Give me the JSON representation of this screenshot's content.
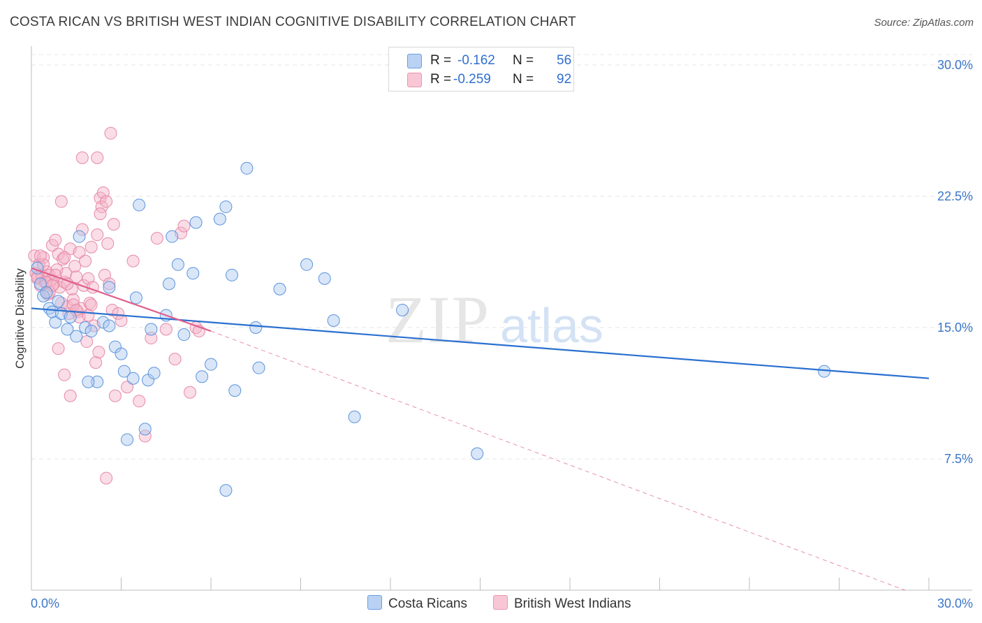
{
  "title": "COSTA RICAN VS BRITISH WEST INDIAN COGNITIVE DISABILITY CORRELATION CHART",
  "source": "Source: ZipAtlas.com",
  "watermark": {
    "zip": "ZIP",
    "atlas": "atlas"
  },
  "colors": {
    "blue_fill": "#a9c8f0",
    "blue_stroke": "#5b93dc",
    "blue_line": "#2a70d0",
    "pink_fill": "#f5b4c8",
    "pink_stroke": "#e689a8",
    "pink_line": "#e0608e",
    "axis_label": "#3a76c8"
  },
  "legend": {
    "rows": [
      {
        "r_label": "R =",
        "r_value": "-0.162",
        "n_label": "N =",
        "n_value": "56"
      },
      {
        "r_label": "R =",
        "r_value": "-0.259",
        "n_label": "N =",
        "n_value": "92"
      }
    ]
  },
  "chart_data": {
    "type": "scatter",
    "title": "COSTA RICAN VS BRITISH WEST INDIAN COGNITIVE DISABILITY CORRELATION CHART",
    "xlabel": "",
    "ylabel": "Cognitive Disability",
    "xlim": [
      0,
      30
    ],
    "ylim": [
      0,
      30.6
    ],
    "x_tick_labels": [
      "0.0%",
      "30.0%"
    ],
    "y_ticks": [
      7.5,
      15.0,
      22.5,
      30.0
    ],
    "y_tick_labels": [
      "7.5%",
      "15.0%",
      "22.5%",
      "30.0%"
    ],
    "grid": true,
    "series": [
      {
        "name": "Costa Ricans",
        "r": -0.162,
        "n": 56,
        "trend": {
          "x": [
            0,
            30
          ],
          "y": [
            16.1,
            12.1
          ]
        },
        "points": [
          [
            0.3,
            17.5
          ],
          [
            0.4,
            16.8
          ],
          [
            0.5,
            17.0
          ],
          [
            0.6,
            16.1
          ],
          [
            0.7,
            15.9
          ],
          [
            0.8,
            15.3
          ],
          [
            0.9,
            16.5
          ],
          [
            1.0,
            15.8
          ],
          [
            1.2,
            14.9
          ],
          [
            1.3,
            15.6
          ],
          [
            1.5,
            14.5
          ],
          [
            1.6,
            20.2
          ],
          [
            1.8,
            15.0
          ],
          [
            2.0,
            14.8
          ],
          [
            2.2,
            11.9
          ],
          [
            2.4,
            15.3
          ],
          [
            2.6,
            15.1
          ],
          [
            2.6,
            17.3
          ],
          [
            2.8,
            13.9
          ],
          [
            3.0,
            13.5
          ],
          [
            3.1,
            12.5
          ],
          [
            3.2,
            8.6
          ],
          [
            3.4,
            12.1
          ],
          [
            3.5,
            16.7
          ],
          [
            3.6,
            22.0
          ],
          [
            3.8,
            9.2
          ],
          [
            3.9,
            12.0
          ],
          [
            4.0,
            14.9
          ],
          [
            4.1,
            12.4
          ],
          [
            4.5,
            15.7
          ],
          [
            4.6,
            17.5
          ],
          [
            4.7,
            20.2
          ],
          [
            4.9,
            18.6
          ],
          [
            5.1,
            14.6
          ],
          [
            5.4,
            18.1
          ],
          [
            5.5,
            21.0
          ],
          [
            5.7,
            12.2
          ],
          [
            6.0,
            12.9
          ],
          [
            6.3,
            21.2
          ],
          [
            6.5,
            21.9
          ],
          [
            6.5,
            5.7
          ],
          [
            6.8,
            11.4
          ],
          [
            6.7,
            18.0
          ],
          [
            7.2,
            24.1
          ],
          [
            7.5,
            15.0
          ],
          [
            7.6,
            12.7
          ],
          [
            8.3,
            17.2
          ],
          [
            9.2,
            18.6
          ],
          [
            9.8,
            17.8
          ],
          [
            10.1,
            15.4
          ],
          [
            10.8,
            9.9
          ],
          [
            12.4,
            16.0
          ],
          [
            14.9,
            7.8
          ],
          [
            26.5,
            12.5
          ],
          [
            0.2,
            18.4
          ],
          [
            1.9,
            11.9
          ]
        ]
      },
      {
        "name": "British West Indians",
        "r": -0.259,
        "n": 92,
        "trend": {
          "x": [
            0,
            6.0
          ],
          "y": [
            18.4,
            14.8
          ]
        },
        "trend_ext": {
          "x": [
            6.0,
            29.2
          ],
          "y": [
            14.8,
            0
          ]
        },
        "points": [
          [
            0.1,
            19.1
          ],
          [
            0.15,
            18.1
          ],
          [
            0.2,
            17.8
          ],
          [
            0.25,
            18.6
          ],
          [
            0.3,
            17.4
          ],
          [
            0.35,
            18.0
          ],
          [
            0.4,
            19.0
          ],
          [
            0.45,
            17.6
          ],
          [
            0.5,
            18.2
          ],
          [
            0.55,
            16.9
          ],
          [
            0.6,
            18.0
          ],
          [
            0.65,
            17.7
          ],
          [
            0.7,
            19.7
          ],
          [
            0.75,
            17.5
          ],
          [
            0.8,
            20.0
          ],
          [
            0.85,
            18.3
          ],
          [
            0.9,
            19.2
          ],
          [
            0.95,
            17.3
          ],
          [
            1.0,
            16.4
          ],
          [
            1.05,
            18.9
          ],
          [
            1.1,
            17.6
          ],
          [
            1.15,
            18.1
          ],
          [
            1.2,
            16.2
          ],
          [
            1.25,
            15.8
          ],
          [
            1.3,
            19.5
          ],
          [
            1.35,
            17.2
          ],
          [
            1.4,
            16.6
          ],
          [
            1.45,
            18.5
          ],
          [
            1.5,
            17.9
          ],
          [
            1.55,
            15.9
          ],
          [
            1.6,
            19.3
          ],
          [
            1.65,
            16.1
          ],
          [
            1.7,
            20.6
          ],
          [
            1.75,
            17.4
          ],
          [
            1.8,
            18.8
          ],
          [
            1.85,
            14.2
          ],
          [
            1.9,
            17.8
          ],
          [
            1.95,
            16.4
          ],
          [
            2.0,
            19.6
          ],
          [
            2.05,
            17.3
          ],
          [
            2.1,
            15.1
          ],
          [
            2.15,
            13.0
          ],
          [
            2.2,
            20.3
          ],
          [
            2.25,
            13.6
          ],
          [
            2.3,
            22.4
          ],
          [
            2.35,
            21.9
          ],
          [
            2.4,
            22.7
          ],
          [
            2.45,
            18.0
          ],
          [
            2.5,
            22.2
          ],
          [
            2.55,
            19.8
          ],
          [
            2.6,
            17.5
          ],
          [
            2.65,
            26.1
          ],
          [
            2.7,
            16.0
          ],
          [
            2.75,
            20.9
          ],
          [
            2.8,
            11.1
          ],
          [
            2.9,
            15.8
          ],
          [
            3.0,
            15.4
          ],
          [
            3.2,
            11.6
          ],
          [
            3.4,
            18.8
          ],
          [
            3.6,
            10.8
          ],
          [
            3.8,
            8.8
          ],
          [
            4.0,
            14.4
          ],
          [
            4.2,
            20.1
          ],
          [
            4.5,
            14.9
          ],
          [
            4.8,
            13.2
          ],
          [
            5.0,
            20.4
          ],
          [
            5.1,
            20.8
          ],
          [
            5.3,
            11.3
          ],
          [
            5.5,
            15.0
          ],
          [
            5.6,
            14.8
          ],
          [
            1.7,
            24.7
          ],
          [
            2.2,
            24.7
          ],
          [
            1.0,
            22.2
          ],
          [
            0.9,
            13.8
          ],
          [
            1.3,
            11.1
          ],
          [
            1.1,
            12.3
          ],
          [
            0.6,
            17.0
          ],
          [
            0.4,
            18.6
          ],
          [
            2.5,
            6.4
          ],
          [
            1.4,
            16.3
          ],
          [
            0.3,
            19.1
          ],
          [
            0.2,
            17.9
          ],
          [
            0.5,
            17.6
          ],
          [
            1.2,
            17.5
          ],
          [
            1.6,
            15.6
          ],
          [
            1.9,
            15.7
          ],
          [
            0.8,
            18.0
          ],
          [
            0.7,
            17.4
          ],
          [
            1.5,
            16.0
          ],
          [
            2.0,
            16.3
          ],
          [
            2.3,
            21.5
          ],
          [
            1.1,
            19.0
          ]
        ]
      }
    ]
  },
  "bottom_legend": [
    "Costa Ricans",
    "British West Indians"
  ]
}
